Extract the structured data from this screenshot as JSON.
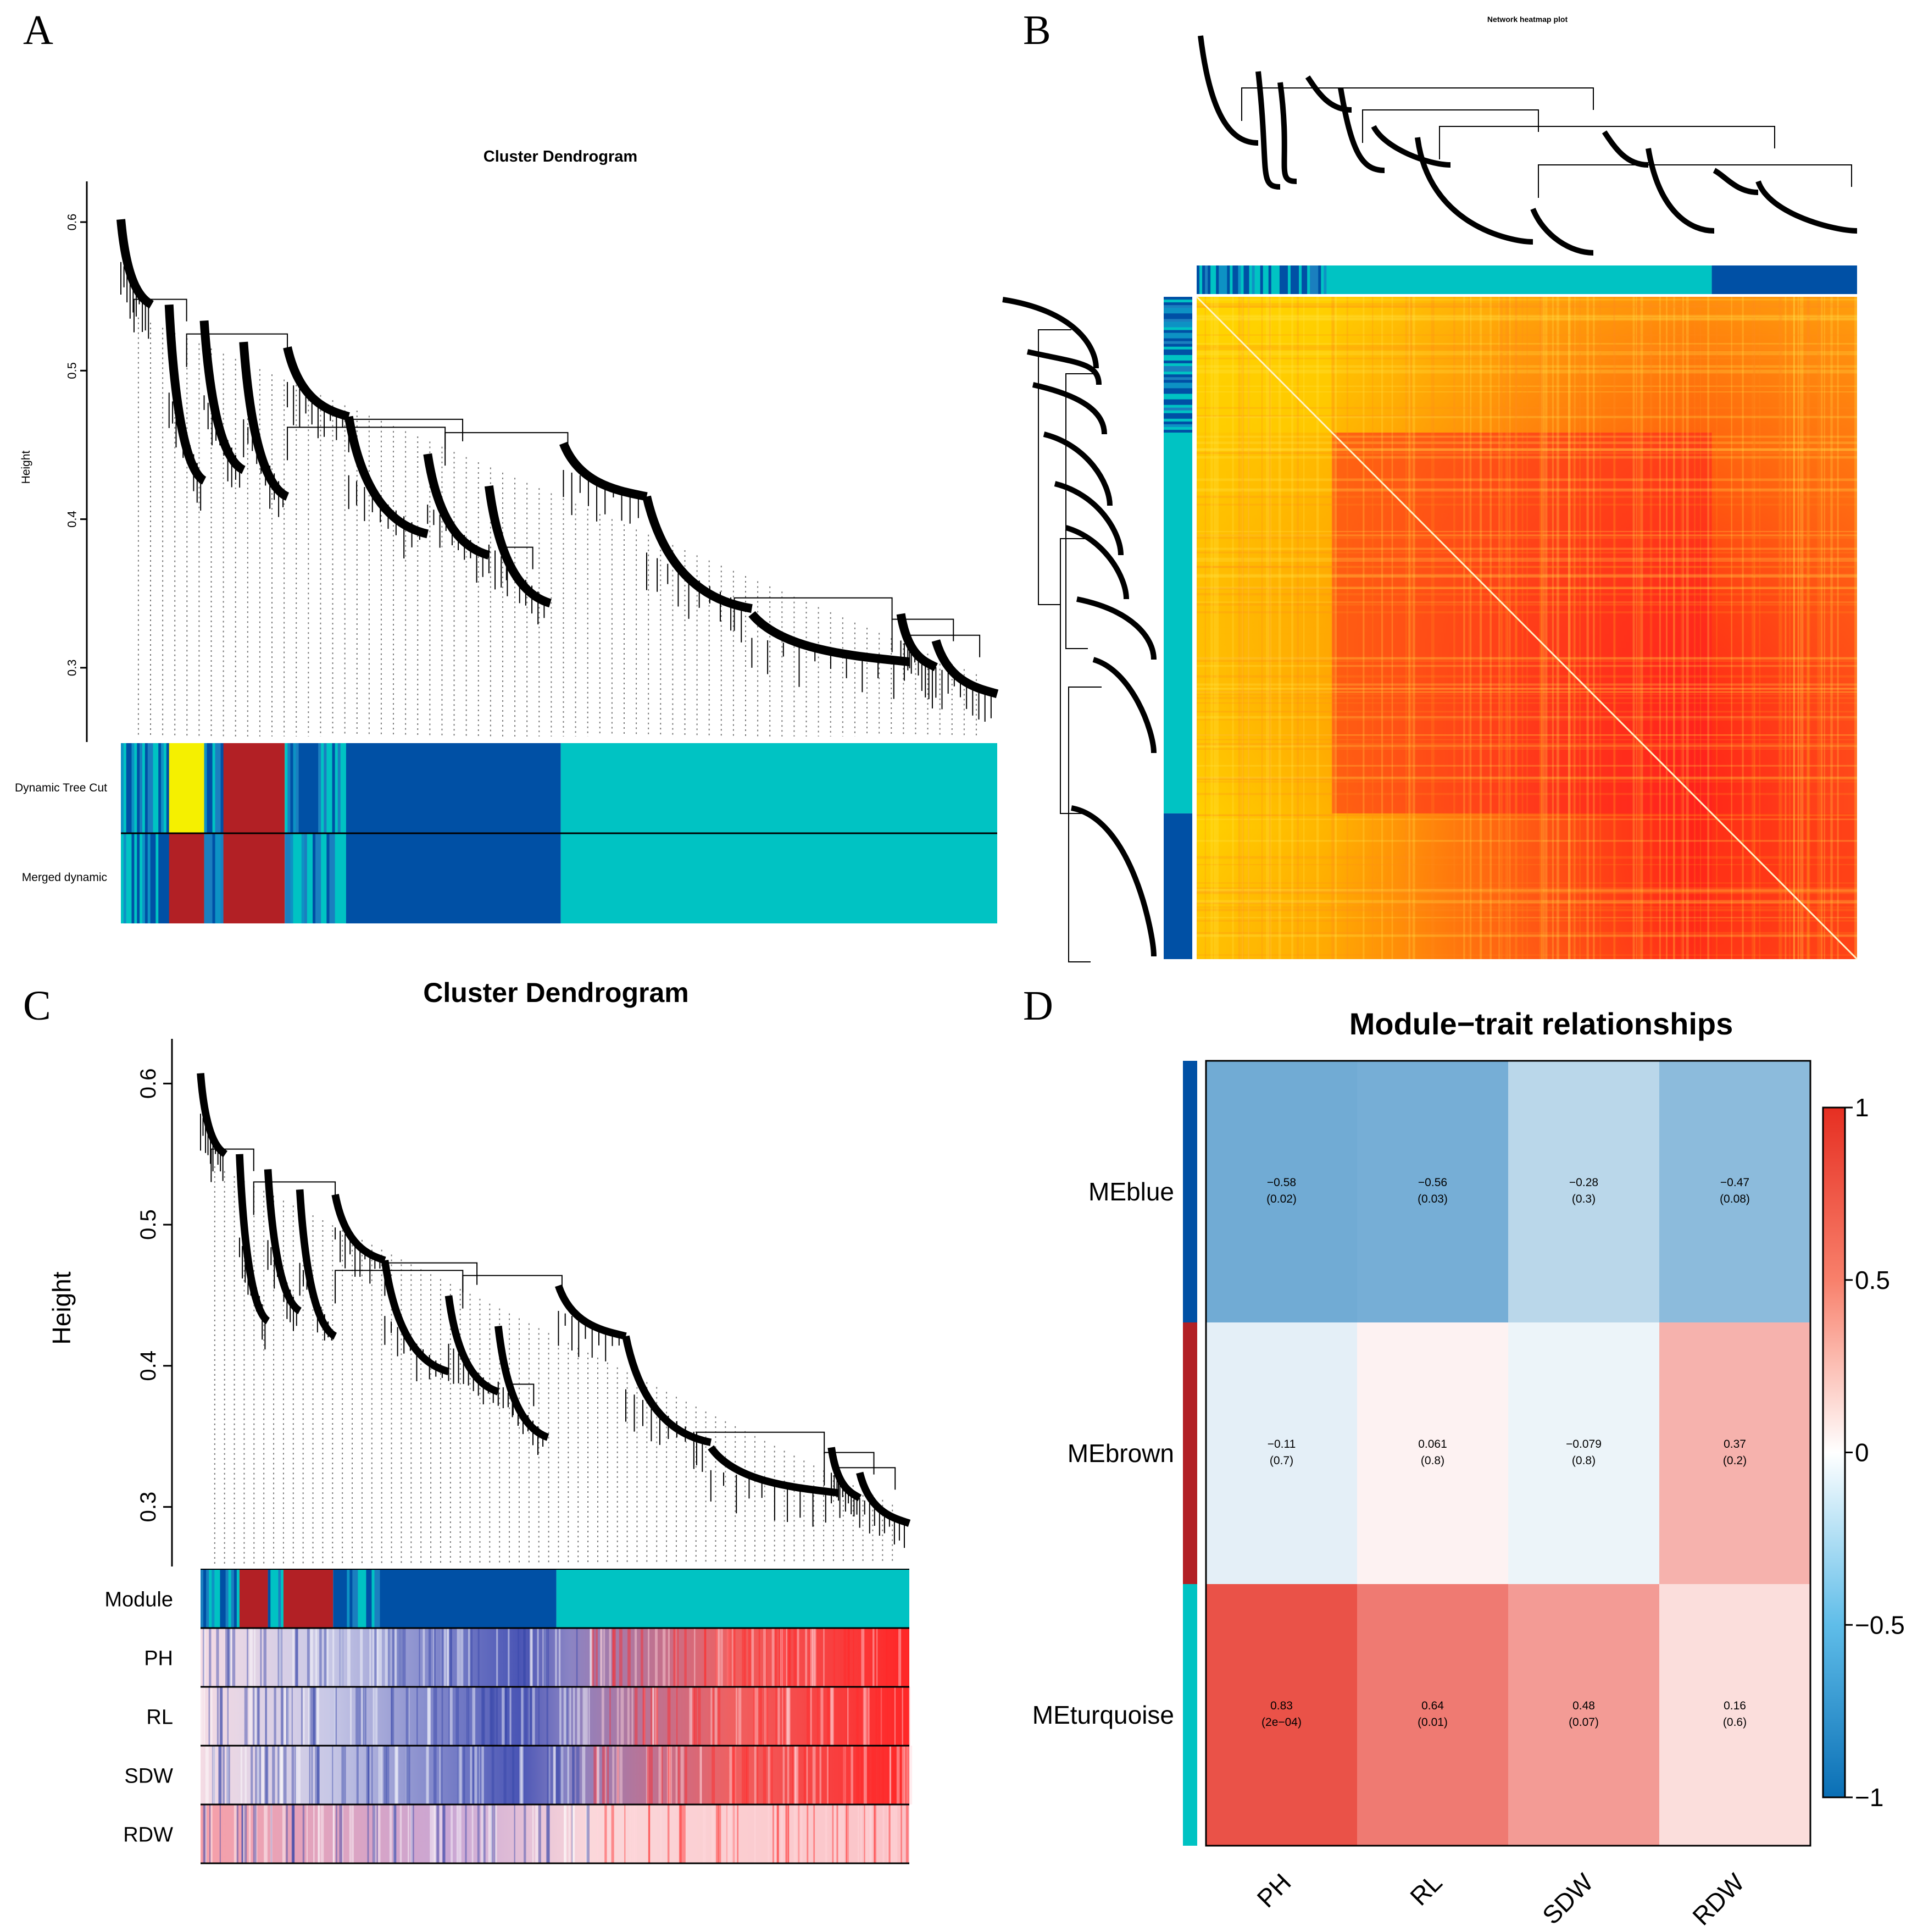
{
  "panels": {
    "a": {
      "letter": "A"
    },
    "b": {
      "letter": "B"
    },
    "c": {
      "letter": "C"
    },
    "d": {
      "letter": "D"
    }
  },
  "colors": {
    "blue": "#0050a5",
    "brown": "#b22025",
    "turquoise": "#00c3c3",
    "yellow": "#f5f000",
    "heat_hot": "#ff1a1a",
    "heat_cold": "#fff7a0"
  },
  "chart_data": [
    {
      "id": "A",
      "type": "dendrogram",
      "title": "Cluster Dendrogram",
      "ylabel": "Height",
      "ylim": [
        0.25,
        0.62
      ],
      "yticks": [
        "0.3",
        "0.4",
        "0.5",
        "0.6"
      ],
      "ytick_values": [
        0.3,
        0.4,
        0.5,
        0.6
      ],
      "color_rows": [
        {
          "label": "Dynamic Tree Cut",
          "segments": [
            {
              "color": "mixed",
              "fraction": 0.055
            },
            {
              "color": "yellow",
              "fraction": 0.04
            },
            {
              "color": "mixed",
              "fraction": 0.022
            },
            {
              "color": "brown",
              "fraction": 0.07
            },
            {
              "color": "mixed",
              "fraction": 0.07
            },
            {
              "color": "blue",
              "fraction": 0.245
            },
            {
              "color": "turquoise",
              "fraction": 0.498
            }
          ]
        },
        {
          "label": "Merged dynamic",
          "segments": [
            {
              "color": "mixed",
              "fraction": 0.055
            },
            {
              "color": "brown",
              "fraction": 0.04
            },
            {
              "color": "mixed",
              "fraction": 0.022
            },
            {
              "color": "brown",
              "fraction": 0.07
            },
            {
              "color": "mixed",
              "fraction": 0.07
            },
            {
              "color": "blue",
              "fraction": 0.245
            },
            {
              "color": "turquoise",
              "fraction": 0.498
            }
          ]
        }
      ]
    },
    {
      "id": "B",
      "type": "heatmap",
      "title": "Network heatmap plot",
      "module_order": [
        {
          "color": "mixed",
          "fraction": 0.205
        },
        {
          "color": "turquoise",
          "fraction": 0.575
        },
        {
          "color": "blue",
          "fraction": 0.22
        }
      ]
    },
    {
      "id": "C",
      "type": "dendrogram",
      "title": "Cluster Dendrogram",
      "ylabel": "Height",
      "ylim": [
        0.25,
        0.62
      ],
      "yticks": [
        "0.3",
        "0.4",
        "0.5",
        "0.6"
      ],
      "ytick_values": [
        0.3,
        0.4,
        0.5,
        0.6
      ],
      "rows": [
        "Module",
        "PH",
        "RL",
        "SDW",
        "RDW"
      ],
      "module_segments": [
        {
          "color": "mixed",
          "fraction": 0.055
        },
        {
          "color": "brown",
          "fraction": 0.04
        },
        {
          "color": "mixed",
          "fraction": 0.022
        },
        {
          "color": "brown",
          "fraction": 0.07
        },
        {
          "color": "mixed",
          "fraction": 0.07
        },
        {
          "color": "blue",
          "fraction": 0.245
        },
        {
          "color": "turquoise",
          "fraction": 0.498
        }
      ]
    },
    {
      "id": "D",
      "type": "heatmap",
      "title": "Module−trait relationships",
      "rows": [
        "MEblue",
        "MEbrown",
        "MEturquoise"
      ],
      "row_colors": [
        "blue",
        "brown",
        "turquoise"
      ],
      "columns": [
        "PH",
        "RL",
        "SDW",
        "RDW"
      ],
      "values": [
        [
          -0.58,
          -0.56,
          -0.28,
          -0.47
        ],
        [
          -0.11,
          0.061,
          -0.079,
          0.37
        ],
        [
          0.83,
          0.64,
          0.48,
          0.16
        ]
      ],
      "cell_text": [
        [
          [
            "−0.58",
            "(0.02)"
          ],
          [
            "−0.56",
            "(0.03)"
          ],
          [
            "−0.28",
            "(0.3)"
          ],
          [
            "−0.47",
            "(0.08)"
          ]
        ],
        [
          [
            "−0.11",
            "(0.7)"
          ],
          [
            "0.061",
            "(0.8)"
          ],
          [
            "−0.079",
            "(0.8)"
          ],
          [
            "0.37",
            "(0.2)"
          ]
        ],
        [
          [
            "0.83",
            "(2e−04)"
          ],
          [
            "0.64",
            "(0.01)"
          ],
          [
            "0.48",
            "(0.07)"
          ],
          [
            "0.16",
            "(0.6)"
          ]
        ]
      ],
      "colorbar": {
        "range": [
          -1,
          1
        ],
        "ticks": [
          {
            "value": 1,
            "label": "1"
          },
          {
            "value": 0.5,
            "label": "0.5"
          },
          {
            "value": 0,
            "label": "0"
          },
          {
            "value": -0.5,
            "label": "−0.5"
          },
          {
            "value": -1,
            "label": "−1"
          }
        ]
      }
    }
  ]
}
